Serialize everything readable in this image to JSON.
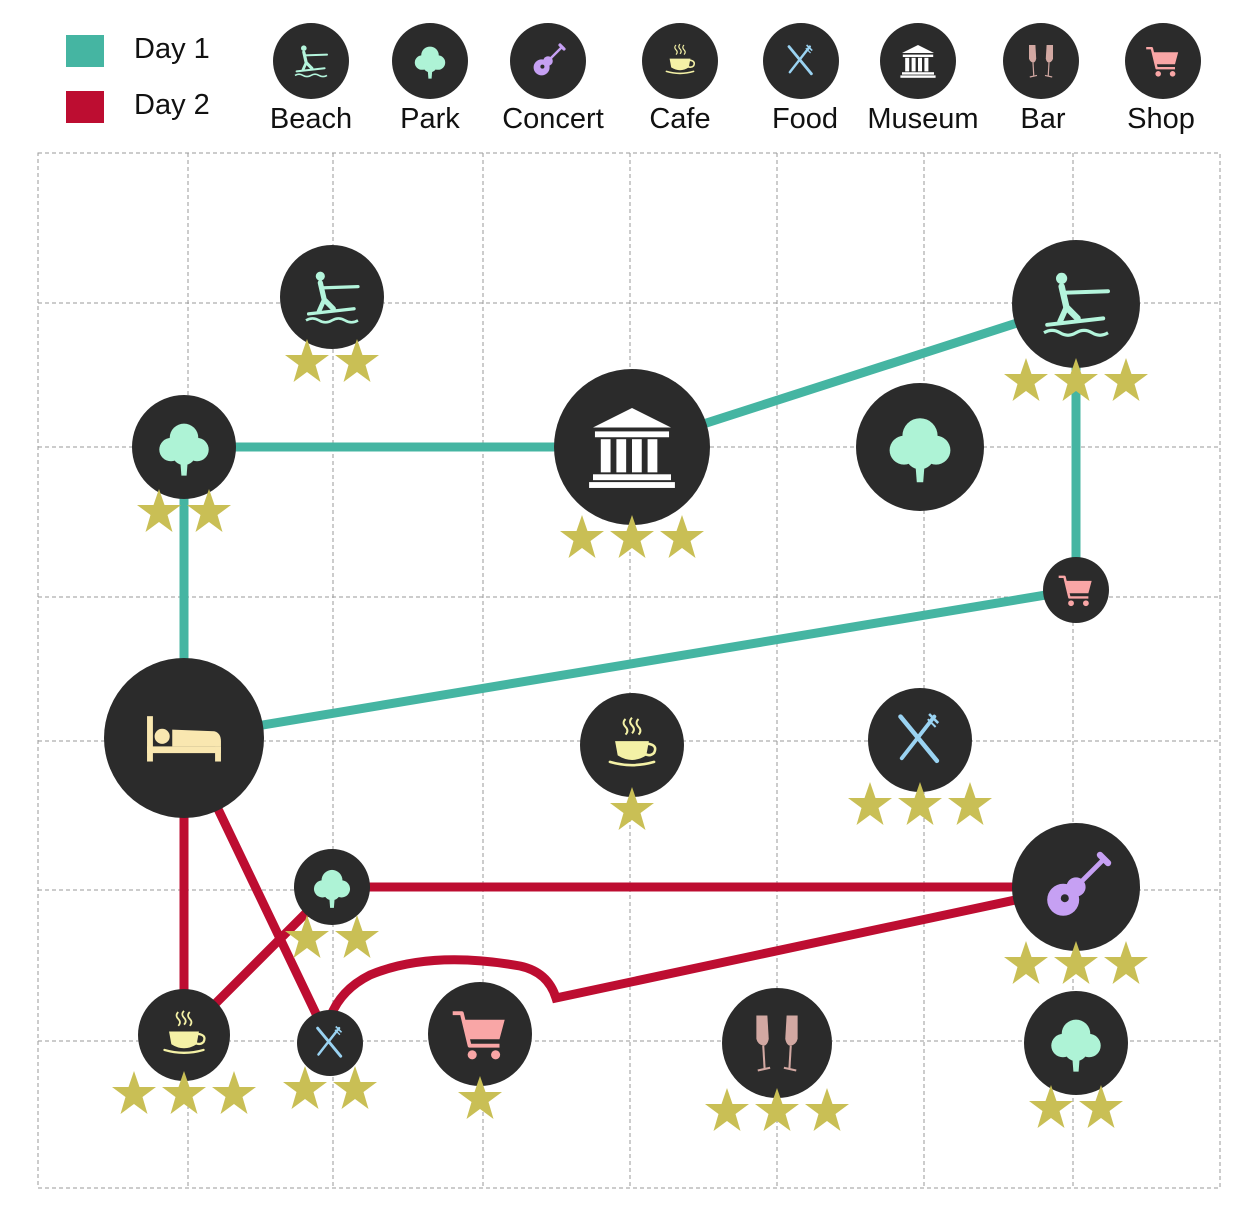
{
  "legend": {
    "days": [
      {
        "label": "Day 1",
        "color": "#45b5a2"
      },
      {
        "label": "Day 2",
        "color": "#bd0d31"
      }
    ],
    "categories": [
      {
        "label": "Beach",
        "icon": "waterski-icon",
        "color": "#b4f5dc"
      },
      {
        "label": "Park",
        "icon": "tree-icon",
        "color": "#aef3d6"
      },
      {
        "label": "Concert",
        "icon": "guitar-icon",
        "color": "#c6a0f3"
      },
      {
        "label": "Cafe",
        "icon": "coffee-cup-icon",
        "color": "#f4f1a6"
      },
      {
        "label": "Food",
        "icon": "fork-knife-icon",
        "color": "#9ad3f2"
      },
      {
        "label": "Museum",
        "icon": "museum-icon",
        "color": "#ffffff"
      },
      {
        "label": "Bar",
        "icon": "champagne-glasses-icon",
        "color": "#d2a8a2"
      },
      {
        "label": "Shop",
        "icon": "shopping-cart-icon",
        "color": "#f9a6a6"
      }
    ]
  },
  "map": {
    "grid_columns": 8,
    "grid_rows": 7,
    "node_color": "#2b2b2b",
    "star_color": "#c9bf55",
    "hotel": {
      "icon": "bed-icon",
      "color": "#f9e7b0"
    },
    "places": [
      {
        "id": "beach-1",
        "category": "Beach",
        "stars": 2
      },
      {
        "id": "beach-2",
        "category": "Beach",
        "stars": 3
      },
      {
        "id": "park-1",
        "category": "Park",
        "stars": 2
      },
      {
        "id": "museum-1",
        "category": "Museum",
        "stars": 3
      },
      {
        "id": "park-2",
        "category": "Park",
        "stars": 0
      },
      {
        "id": "shop-1",
        "category": "Shop",
        "stars": 0
      },
      {
        "id": "cafe-1",
        "category": "Cafe",
        "stars": 1
      },
      {
        "id": "food-1",
        "category": "Food",
        "stars": 3
      },
      {
        "id": "park-3",
        "category": "Park",
        "stars": 2
      },
      {
        "id": "concert-1",
        "category": "Concert",
        "stars": 3
      },
      {
        "id": "cafe-2",
        "category": "Cafe",
        "stars": 3
      },
      {
        "id": "food-2",
        "category": "Food",
        "stars": 2
      },
      {
        "id": "shop-2",
        "category": "Shop",
        "stars": 1
      },
      {
        "id": "bar-1",
        "category": "Bar",
        "stars": 3
      },
      {
        "id": "park-4",
        "category": "Park",
        "stars": 2
      }
    ],
    "routes": [
      {
        "day": "Day 1",
        "stops": [
          "hotel",
          "park-1",
          "museum-1",
          "beach-2",
          "shop-1",
          "hotel"
        ]
      },
      {
        "day": "Day 2",
        "stops": [
          "hotel",
          "cafe-2",
          "park-3",
          "concert-1",
          "shop-2",
          "food-2",
          "hotel"
        ]
      }
    ]
  }
}
